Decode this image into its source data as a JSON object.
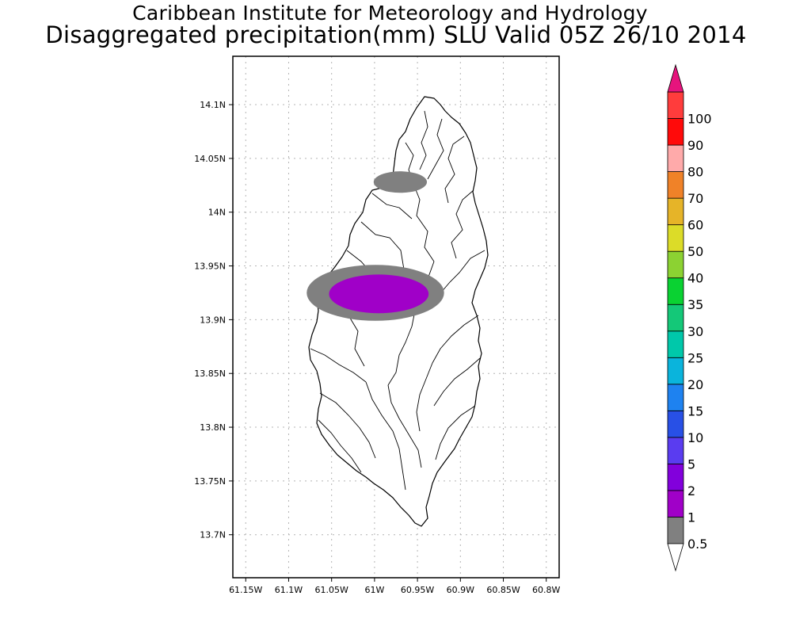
{
  "title_line1": "Caribbean Institute for Meteorology and Hydrology",
  "title_line2": "Disaggregated precipitation(mm) SLU Valid 05Z 26/10 2014",
  "map": {
    "lon_range": [
      -61.165,
      -60.785
    ],
    "lat_range": [
      13.66,
      14.145
    ],
    "gridlines": true,
    "lon_ticks": [
      {
        "value": -61.15,
        "label": "61.15W"
      },
      {
        "value": -61.1,
        "label": "61.1W"
      },
      {
        "value": -61.05,
        "label": "61.05W"
      },
      {
        "value": -61.0,
        "label": "61W"
      },
      {
        "value": -60.95,
        "label": "60.95W"
      },
      {
        "value": -60.9,
        "label": "60.9W"
      },
      {
        "value": -60.85,
        "label": "60.85W"
      },
      {
        "value": -60.8,
        "label": "60.8W"
      }
    ],
    "lat_ticks": [
      {
        "value": 14.1,
        "label": "14.1N"
      },
      {
        "value": 14.05,
        "label": "14.05N"
      },
      {
        "value": 14.0,
        "label": "14N"
      },
      {
        "value": 13.95,
        "label": "13.95N"
      },
      {
        "value": 13.9,
        "label": "13.9N"
      },
      {
        "value": 13.85,
        "label": "13.85N"
      },
      {
        "value": 13.8,
        "label": "13.8N"
      },
      {
        "value": 13.75,
        "label": "13.75N"
      },
      {
        "value": 13.7,
        "label": "13.7N"
      }
    ],
    "precip_areas": [
      {
        "category": "0.5-1",
        "color": "#808080",
        "center": [
          -60.97,
          14.028
        ],
        "semi_axes_deg": [
          0.031,
          0.01
        ]
      },
      {
        "category": "0.5-1",
        "color": "#808080",
        "center": [
          -60.999,
          13.925
        ],
        "semi_axes_deg": [
          0.08,
          0.026
        ]
      },
      {
        "category": "1-2",
        "color": "#a000c8",
        "center": [
          -60.995,
          13.924
        ],
        "semi_axes_deg": [
          0.058,
          0.018
        ]
      }
    ]
  },
  "colorbar": {
    "levels": [
      "0.5",
      "1",
      "2",
      "5",
      "10",
      "15",
      "20",
      "25",
      "30",
      "35",
      "40",
      "50",
      "60",
      "70",
      "80",
      "90",
      "100"
    ],
    "colors": [
      "#808080",
      "#a000c8",
      "#8200dc",
      "#5a3cf0",
      "#2850e6",
      "#1e82f0",
      "#0ab4dc",
      "#00c8aa",
      "#14c878",
      "#0ad232",
      "#8cd232",
      "#dcdc28",
      "#e6b428",
      "#f08228",
      "#ffaaaa",
      "#ff0a0a",
      "#ff3c3c"
    ],
    "over_color": "#e6147d",
    "under_color": "#ffffff"
  }
}
